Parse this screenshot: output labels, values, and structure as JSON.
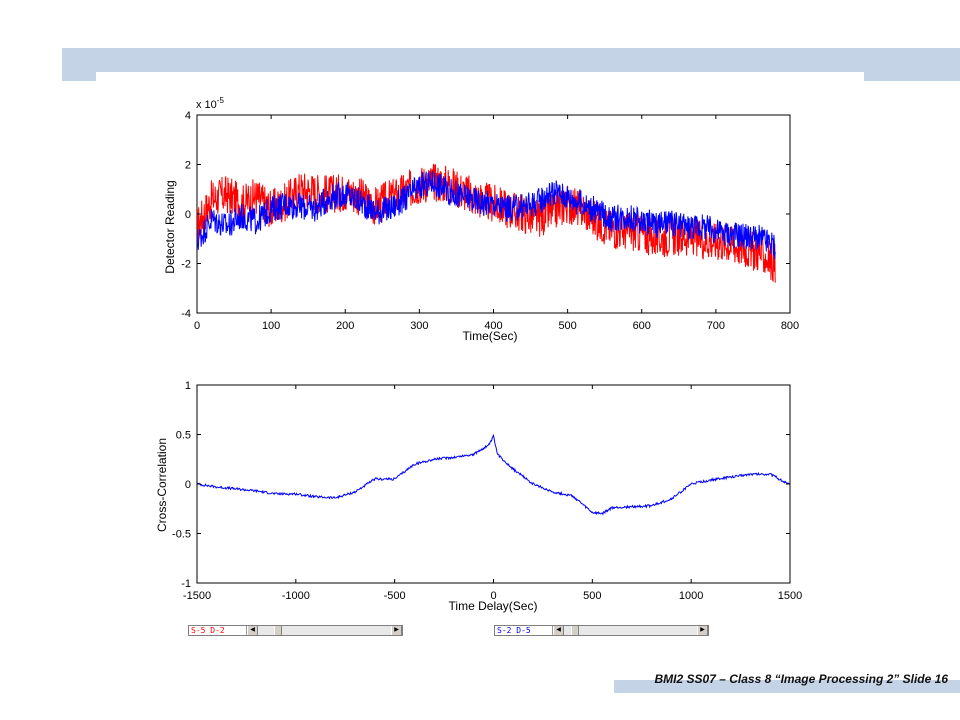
{
  "footer": {
    "text": "BMI2 SS07 – Class 8 “Image Processing 2” Slide 16"
  },
  "colors": {
    "band": "#c5d3e6",
    "red_series": "#ff0000",
    "blue_series": "#0000ff"
  },
  "scrollbars": [
    {
      "label": "S-5 D-2",
      "label_color": "#ff0000",
      "thumb_fraction": 0.12
    },
    {
      "label": "S-2 D-5",
      "label_color": "#0000ff",
      "thumb_fraction": 0.05
    }
  ],
  "chart_data": [
    {
      "type": "line",
      "exponent_label": "x 10",
      "exponent_power": "-5",
      "xlabel": "Time(Sec)",
      "ylabel": "Detector Reading",
      "xlim": [
        0,
        800
      ],
      "ylim": [
        -4,
        4
      ],
      "xticks": [
        0,
        100,
        200,
        300,
        400,
        500,
        600,
        700,
        800
      ],
      "yticks": [
        -4,
        -2,
        0,
        2,
        4
      ],
      "grid": false,
      "series": [
        {
          "color": "#ff0000",
          "x": [
            0,
            20,
            40,
            60,
            80,
            100,
            120,
            140,
            160,
            180,
            200,
            220,
            240,
            260,
            280,
            300,
            320,
            340,
            360,
            380,
            400,
            420,
            440,
            460,
            480,
            500,
            520,
            540,
            560,
            580,
            600,
            620,
            640,
            660,
            680,
            700,
            720,
            740,
            760,
            780
          ],
          "y": [
            -0.5,
            0.6,
            0.8,
            0.4,
            0.7,
            0.2,
            0.5,
            1.0,
            0.9,
            0.8,
            0.9,
            0.7,
            0.3,
            0.6,
            0.9,
            1.2,
            1.3,
            1.2,
            0.9,
            0.6,
            0.4,
            0.2,
            0.0,
            -0.2,
            0.1,
            0.4,
            0.2,
            -0.3,
            -0.6,
            -0.7,
            -0.8,
            -1.0,
            -0.9,
            -0.9,
            -1.0,
            -1.1,
            -1.2,
            -1.4,
            -1.6,
            -2.0
          ],
          "amplitude": 0.8
        },
        {
          "color": "#0000ff",
          "x": [
            0,
            20,
            40,
            60,
            80,
            100,
            120,
            140,
            160,
            180,
            200,
            220,
            240,
            260,
            280,
            300,
            320,
            340,
            360,
            380,
            400,
            420,
            440,
            460,
            480,
            500,
            520,
            540,
            560,
            580,
            600,
            620,
            640,
            660,
            680,
            700,
            720,
            740,
            760,
            780
          ],
          "y": [
            -1.1,
            -0.2,
            -0.5,
            -0.1,
            -0.3,
            0.2,
            0.4,
            0.3,
            0.2,
            0.7,
            0.8,
            0.5,
            0.1,
            0.2,
            0.6,
            1.1,
            1.3,
            0.9,
            0.7,
            0.5,
            0.4,
            0.2,
            0.3,
            0.5,
            0.9,
            0.7,
            0.4,
            0.1,
            -0.2,
            -0.1,
            -0.3,
            -0.4,
            -0.4,
            -0.5,
            -0.5,
            -0.7,
            -0.8,
            -0.9,
            -1.0,
            -1.3
          ],
          "amplitude": 0.55
        }
      ]
    },
    {
      "type": "line",
      "xlabel": "Time Delay(Sec)",
      "ylabel": "Cross-Correlation",
      "xlim": [
        -1500,
        1500
      ],
      "ylim": [
        -1,
        1
      ],
      "xticks": [
        -1500,
        -1000,
        -500,
        0,
        500,
        1000,
        1500
      ],
      "yticks": [
        -1,
        -0.5,
        0,
        0.5,
        1
      ],
      "grid": false,
      "series": [
        {
          "color": "#0000ff",
          "x": [
            -1500,
            -1400,
            -1300,
            -1200,
            -1100,
            -1000,
            -900,
            -800,
            -700,
            -600,
            -500,
            -400,
            -300,
            -200,
            -100,
            -20,
            0,
            20,
            100,
            200,
            300,
            400,
            500,
            550,
            600,
            700,
            800,
            900,
            1000,
            1100,
            1200,
            1300,
            1400,
            1500
          ],
          "y": [
            0.0,
            -0.03,
            -0.05,
            -0.07,
            -0.1,
            -0.1,
            -0.13,
            -0.14,
            -0.08,
            0.05,
            0.05,
            0.2,
            0.25,
            0.27,
            0.3,
            0.4,
            0.48,
            0.3,
            0.15,
            0.0,
            -0.08,
            -0.12,
            -0.29,
            -0.3,
            -0.24,
            -0.23,
            -0.22,
            -0.15,
            0.0,
            0.04,
            0.07,
            0.1,
            0.1,
            -0.01
          ],
          "amplitude": 0.012
        }
      ]
    }
  ]
}
